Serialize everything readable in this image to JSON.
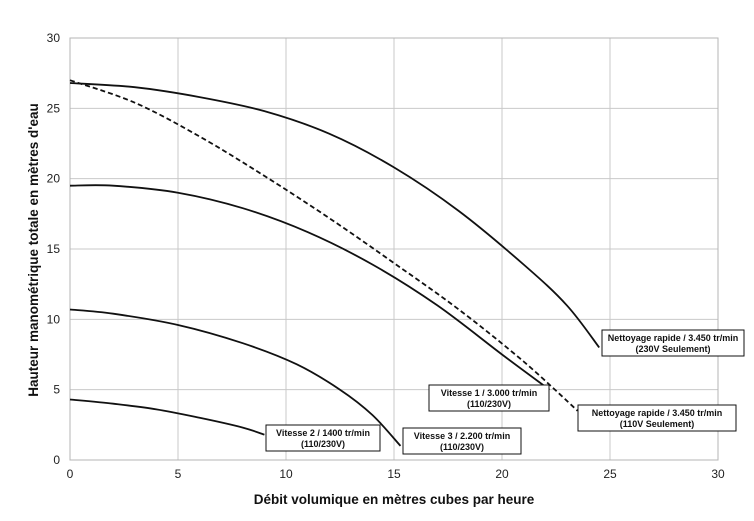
{
  "chart_data": {
    "type": "line",
    "xlabel": "Débit volumique en mètres cubes par heure",
    "ylabel": "Hauteur manométrique totale en mètres d'eau",
    "xlim": [
      0,
      30
    ],
    "ylim": [
      0,
      30
    ],
    "x_ticks": [
      0,
      5,
      10,
      15,
      20,
      25,
      30
    ],
    "y_ticks": [
      0,
      5,
      10,
      15,
      20,
      25,
      30
    ],
    "grid": true,
    "series": [
      {
        "name_lines": [
          "Nettoyage rapide / 3.450 tr/min",
          "(230V Seulement)"
        ],
        "style": "solid",
        "points": [
          [
            0,
            26.8
          ],
          [
            3,
            26.5
          ],
          [
            6,
            25.8
          ],
          [
            9,
            24.8
          ],
          [
            12,
            23.2
          ],
          [
            15,
            20.8
          ],
          [
            18,
            17.7
          ],
          [
            21,
            13.9
          ],
          [
            23,
            11.0
          ],
          [
            24.5,
            8.0
          ]
        ]
      },
      {
        "name_lines": [
          "Nettoyage rapide / 3.450 tr/min",
          "(110V Seulement)"
        ],
        "style": "dashed",
        "points": [
          [
            0,
            27.0
          ],
          [
            3,
            25.4
          ],
          [
            6,
            23.0
          ],
          [
            9,
            20.2
          ],
          [
            12,
            17.2
          ],
          [
            15,
            14.0
          ],
          [
            18,
            10.7
          ],
          [
            21,
            7.0
          ],
          [
            23.5,
            3.5
          ]
        ]
      },
      {
        "name_lines": [
          "Vitesse 1 / 3.000 tr/min",
          "(110/230V)"
        ],
        "style": "solid",
        "points": [
          [
            0,
            19.5
          ],
          [
            2,
            19.5
          ],
          [
            5,
            19.0
          ],
          [
            8,
            17.9
          ],
          [
            11,
            16.2
          ],
          [
            14,
            13.9
          ],
          [
            17,
            11.0
          ],
          [
            20,
            7.5
          ],
          [
            22.2,
            5.0
          ]
        ]
      },
      {
        "name_lines": [
          "Vitesse 3 / 2.200 tr/min",
          "(110/230V)"
        ],
        "style": "solid",
        "points": [
          [
            0,
            10.7
          ],
          [
            2,
            10.4
          ],
          [
            5,
            9.6
          ],
          [
            8,
            8.3
          ],
          [
            10.5,
            6.8
          ],
          [
            12.5,
            5.0
          ],
          [
            14,
            3.2
          ],
          [
            15.3,
            1.0
          ]
        ]
      },
      {
        "name_lines": [
          "Vitesse 2 / 1400 tr/min",
          "(110/230V)"
        ],
        "style": "solid",
        "points": [
          [
            0,
            4.3
          ],
          [
            2,
            4.0
          ],
          [
            4,
            3.6
          ],
          [
            6,
            3.0
          ],
          [
            8,
            2.3
          ],
          [
            9,
            1.8
          ]
        ]
      }
    ]
  }
}
